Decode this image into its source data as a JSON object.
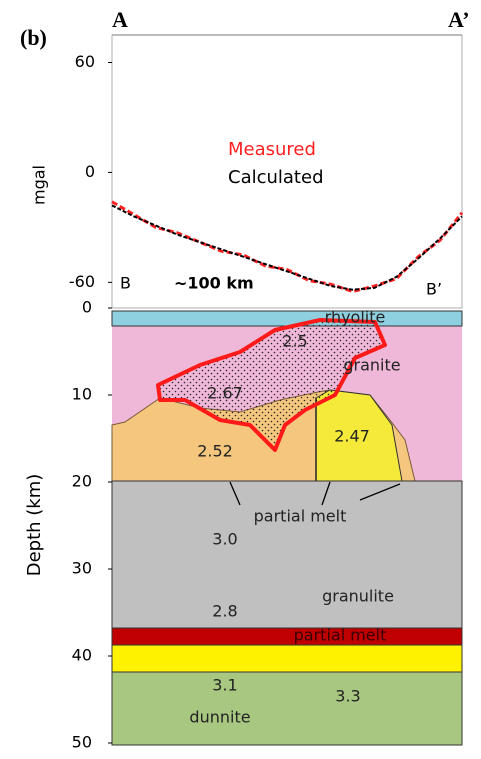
{
  "panel_label": "(b)",
  "start_label": "A",
  "end_label": "A’",
  "chart_data": {
    "type": "line",
    "ylabel": "mgal",
    "ylim": [
      -74,
      75
    ],
    "yticks": [
      60,
      0,
      -60
    ],
    "series": [
      {
        "name": "Measured",
        "color": "#ff2020",
        "values": [
          -16,
          -23,
          -30,
          -33,
          -38,
          -43,
          -45,
          -51,
          -53,
          -59,
          -61,
          -65,
          -62,
          -58,
          -46,
          -37,
          -22
        ]
      },
      {
        "name": "Calculated",
        "color": "#000000",
        "values": [
          -18,
          -24,
          -29,
          -34,
          -38,
          -42,
          -46,
          -50,
          -54,
          -58,
          -62,
          -64,
          -63,
          -57,
          -47,
          -36,
          -24
        ]
      }
    ],
    "scale_start": "B",
    "scale_text": "~100 km",
    "scale_end": "B’"
  },
  "section": {
    "ylabel": "Depth (km)",
    "ylim": [
      0,
      50
    ],
    "yticks": [
      0,
      10,
      20,
      30,
      40,
      50
    ],
    "labels": [
      "rhyolite",
      "2.5",
      "granite",
      "2.67",
      "2.52",
      "2.47",
      "partial melt",
      "3.0",
      "granulite",
      "2.8",
      "partial melt",
      "3.1",
      "3.3",
      "dunnite"
    ]
  }
}
